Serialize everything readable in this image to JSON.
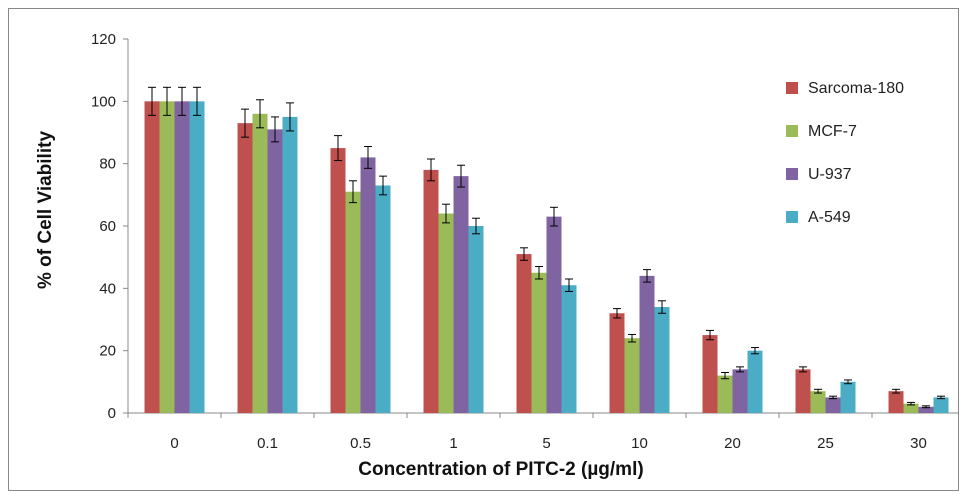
{
  "chart_data": {
    "type": "bar",
    "title": "",
    "xlabel": "Concentration of PITC-2  (µg/ml)",
    "ylabel": "% of Cell Viability",
    "ylim": [
      0,
      120
    ],
    "yticks": [
      0,
      20,
      40,
      60,
      80,
      100,
      120
    ],
    "grid": false,
    "legend_position": "right",
    "categories": [
      "0",
      "0.1",
      "0.5",
      "1",
      "5",
      "10",
      "20",
      "25",
      "30"
    ],
    "series": [
      {
        "name": "Sarcoma-180",
        "color": "#c0504d",
        "values": [
          100,
          93,
          85,
          78,
          51,
          32,
          25,
          14,
          7
        ],
        "errors": [
          4.5,
          4.5,
          4,
          3.5,
          2,
          1.5,
          1.5,
          0.8,
          0.6
        ]
      },
      {
        "name": "MCF-7",
        "color": "#9bbb59",
        "values": [
          100,
          96,
          71,
          64,
          45,
          24,
          12,
          7,
          3
        ],
        "errors": [
          4.5,
          4.5,
          3.5,
          3,
          2,
          1.2,
          1,
          0.6,
          0.4
        ]
      },
      {
        "name": "U-937",
        "color": "#8064a2",
        "values": [
          100,
          91,
          82,
          76,
          63,
          44,
          14,
          5,
          2
        ],
        "errors": [
          4.5,
          4,
          3.5,
          3.5,
          3,
          2,
          0.8,
          0.4,
          0.3
        ]
      },
      {
        "name": "A-549",
        "color": "#4bacc6",
        "values": [
          100,
          95,
          73,
          60,
          41,
          34,
          20,
          10,
          5
        ],
        "errors": [
          4.5,
          4.5,
          3,
          2.5,
          2,
          2,
          1,
          0.6,
          0.4
        ]
      }
    ]
  }
}
